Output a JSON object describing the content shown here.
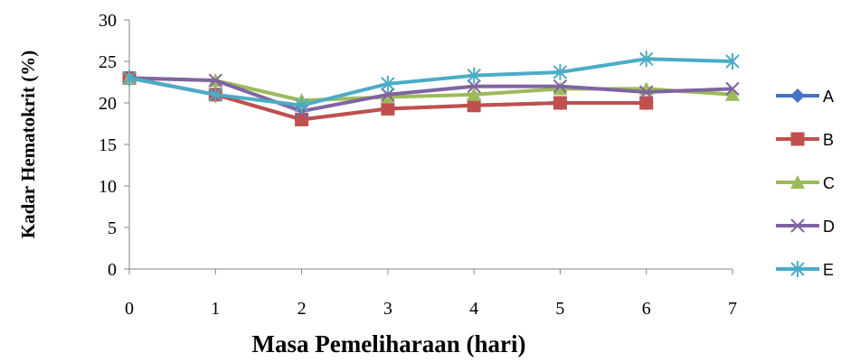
{
  "chart_data": {
    "type": "line",
    "title": "",
    "xlabel": "Masa Pemeliharaan (hari)",
    "ylabel": "Kadar Hematokrit (%)",
    "x": [
      0,
      1,
      2,
      3,
      4,
      5,
      6,
      7
    ],
    "xlim": [
      0,
      7
    ],
    "ylim": [
      0,
      30
    ],
    "yticks": [
      0,
      5,
      10,
      15,
      20,
      25,
      30
    ],
    "grid": false,
    "legend_position": "right",
    "series": [
      {
        "name": "A",
        "color": "#4472C4",
        "marker": "diamond",
        "values": [
          23,
          21,
          18,
          19.3,
          19.7,
          20,
          20,
          null
        ]
      },
      {
        "name": "B",
        "color": "#C0504D",
        "marker": "square",
        "values": [
          23,
          21,
          18,
          19.3,
          19.7,
          20,
          20,
          null
        ]
      },
      {
        "name": "C",
        "color": "#9BBB59",
        "marker": "triangle",
        "values": [
          23,
          22.7,
          20.3,
          20.7,
          21,
          21.7,
          21.7,
          21
        ]
      },
      {
        "name": "D",
        "color": "#8064A2",
        "marker": "x",
        "values": [
          23,
          22.7,
          19,
          21,
          22,
          22,
          21.3,
          21.7
        ]
      },
      {
        "name": "E",
        "color": "#4BACC6",
        "marker": "star",
        "values": [
          23,
          21,
          19.7,
          22.3,
          23.3,
          23.7,
          25.3,
          25
        ]
      }
    ]
  }
}
